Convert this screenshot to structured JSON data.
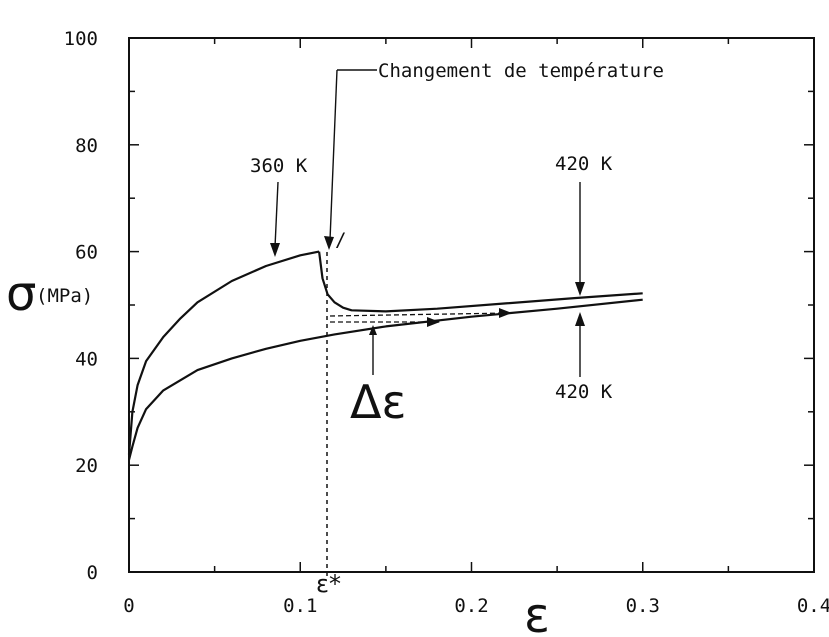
{
  "chart_data": {
    "type": "line",
    "title": "",
    "xlabel": "ε",
    "ylabel": "σ(MPa)",
    "xlim": [
      0,
      0.4
    ],
    "ylim": [
      0,
      100
    ],
    "x_ticks": [
      "0",
      "0.1",
      "0.2",
      "0.3",
      "0.4"
    ],
    "y_ticks": [
      "0",
      "20",
      "40",
      "60",
      "80",
      "100"
    ],
    "grid": false,
    "series": [
      {
        "x": [
          0.0,
          0.002,
          0.005,
          0.01,
          0.02,
          0.03,
          0.04,
          0.06,
          0.08,
          0.1,
          0.111
        ],
        "values": [
          22,
          30,
          35,
          39.5,
          44,
          47.5,
          50.5,
          54.5,
          57.3,
          59.3,
          60
        ]
      },
      {
        "x": [
          0.111,
          0.113,
          0.116,
          0.12,
          0.125,
          0.13,
          0.15,
          0.18,
          0.22,
          0.26,
          0.3
        ],
        "values": [
          60,
          55,
          52,
          50.5,
          49.5,
          49,
          48.8,
          49.3,
          50.3,
          51.3,
          52.2
        ]
      },
      {
        "x": [
          0.0,
          0.002,
          0.005,
          0.01,
          0.02,
          0.04,
          0.06,
          0.08,
          0.1,
          0.12,
          0.15,
          0.2,
          0.25,
          0.3
        ],
        "values": [
          21,
          23.5,
          27,
          30.5,
          34,
          37.8,
          40,
          41.8,
          43.3,
          44.5,
          46,
          47.8,
          49.3,
          51
        ]
      }
    ],
    "annotations": {
      "change": "Changement de température",
      "t360": "360 K",
      "t420_top": "420 K",
      "t420_bottom": "420 K",
      "delta": "Δε",
      "estar": "ε*",
      "ylabel_sigma": "σ",
      "ylabel_unit": "(MPa)",
      "xlabel": "ε"
    }
  }
}
